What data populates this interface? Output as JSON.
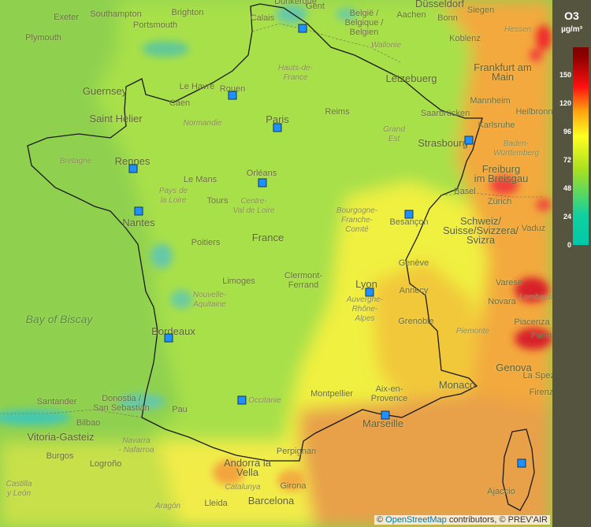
{
  "legend": {
    "pollutant": "O3",
    "unit": "µg/m³",
    "ticks": [
      "150",
      "120",
      "96",
      "72",
      "48",
      "24",
      "0"
    ]
  },
  "attribution": {
    "copyright": "©",
    "osm_link": "OpenStreetMap",
    "text": "contributors, © PREV'AIR"
  },
  "places": {
    "dunkerque": "Dunkerque",
    "gent": "Gent",
    "dusseldorf": "Düsseldorf",
    "exeter": "Exeter",
    "southampton": "Southampton",
    "brighton": "Brighton",
    "portsmouth": "Portsmouth",
    "plymouth": "Plymouth",
    "calais": "Calais",
    "belgie": "België /\nBelgique /\nBelgien",
    "aachen": "Aachen",
    "bonn": "Bonn",
    "siegen": "Siegen",
    "hessen": "Hessen",
    "koblenz": "Koblenz",
    "wallonie": "Wallonie",
    "frankfurt": "Frankfurt am\nMain",
    "guernsey": "Guernsey",
    "le_havre": "Le Havre",
    "rouen": "Rouen",
    "caen": "Caen",
    "hauts_de_france": "Hauts-de-\nFrance",
    "letzebuerg": "Lëtzebuerg",
    "saint_helier": "Saint Helier",
    "normandie": "Normandie",
    "paris": "Paris",
    "reims": "Reims",
    "mannheim": "Mannheim",
    "heilbronn": "Heilbronn",
    "saarbrucken": "Saarbrücken",
    "karlsruhe": "Karlsruhe",
    "grand_est": "Grand\nEst",
    "strasbourg": "Strasbourg",
    "bretagne": "Bretagne",
    "rennes": "Rennes",
    "baden": "Baden-\nWürttemberg",
    "freiburg": "Freiburg\nim Breisgau",
    "orleans": "Orléans",
    "le_mans": "Le Mans",
    "basel": "Basel",
    "pays_de_la_loire": "Pays de\nla Loire",
    "tours": "Tours",
    "centre": "Centre-\nVal de Loire",
    "zurich": "Zürich",
    "nantes": "Nantes",
    "bourgogne": "Bourgogne-\nFranche-\nComté",
    "besancon": "Besançon",
    "schweiz": "Schweiz/\nSuisse/Svizzera/\nSvizra",
    "vaduz": "Vaduz",
    "poitiers": "Poitiers",
    "france": "France",
    "geneve": "Genève",
    "limoges": "Limoges",
    "clermont": "Clermont-\nFerrand",
    "lyon": "Lyon",
    "annecy": "Annecy",
    "varese": "Varese",
    "bay_of_biscay": "Bay of Biscay",
    "nouvelle_aquitaine": "Nouvelle-\nAquitaine",
    "auvergne": "Auvergne-\nRhône-\nAlpes",
    "novara": "Novara",
    "lombardia": "Lombardia",
    "bordeaux": "Bordeaux",
    "grenoble": "Grenoble",
    "piacenza": "Piacenza",
    "parma": "Parma",
    "piemonte": "Piemonte",
    "genova": "Genova",
    "la_spezia": "La Spezia",
    "firenze": "Firenze",
    "montpellier": "Montpellier",
    "aix": "Aix-en-\nProvence",
    "monaco": "Monaco",
    "santander": "Santander",
    "donostia": "Donostia /\nSan Sebastián",
    "pau": "Pau",
    "occitanie": "Occitanie",
    "bilbao": "Bilbao",
    "marseille": "Marseille",
    "vitoria": "Vitoria-Gasteiz",
    "navarra": "Navarra\n- Nafarroa",
    "perpignan": "Perpignan",
    "burgos": "Burgos",
    "logrono": "Logroño",
    "andorra": "Andorra la\nVella",
    "girona": "Girona",
    "castilla": "Castilla\ny León",
    "catalunya": "Catalunya",
    "ajaccio": "Ajaccio",
    "aragon": "Aragón",
    "lleida": "Lleida",
    "barcelona": "Barcelona"
  }
}
